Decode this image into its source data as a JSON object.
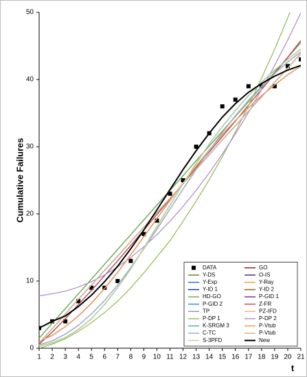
{
  "chart_data": {
    "type": "line",
    "ylabel": "Cumulative Failures",
    "xlabel": "t",
    "xlim": [
      1,
      21
    ],
    "xticks": [
      1,
      2,
      3,
      4,
      5,
      6,
      7,
      8,
      9,
      10,
      11,
      12,
      13,
      14,
      15,
      16,
      17,
      18,
      19,
      20,
      21
    ],
    "ylim": [
      0,
      50
    ],
    "yticks": [
      0,
      10,
      20,
      30,
      40,
      50
    ],
    "grid": false,
    "legend": "lower right",
    "x": [
      1,
      2,
      3,
      4,
      5,
      6,
      7,
      8,
      9,
      10,
      11,
      12,
      13,
      14,
      15,
      16,
      17,
      18,
      19,
      20,
      21
    ],
    "series": [
      {
        "name": "DATA",
        "color": "#000000",
        "marker": "square",
        "values": [
          3,
          4,
          4,
          7,
          9,
          9,
          10,
          13,
          17,
          19,
          23,
          25,
          30,
          32,
          36,
          37,
          39,
          39,
          39,
          42,
          43
        ]
      },
      {
        "name": "GO",
        "color": "#7b2c2c",
        "values": [
          0.8,
          2.9,
          5.1,
          7.3,
          9.4,
          11.6,
          13.7,
          15.9,
          18,
          20.2,
          22.3,
          24.5,
          26.6,
          28.8,
          31,
          33.1,
          35.3,
          37.4,
          39.6,
          41.7,
          43.9
        ]
      },
      {
        "name": "Y-DS",
        "color": "#6b7d23",
        "values": [
          0.3,
          0.8,
          1.6,
          2.8,
          4.4,
          6.5,
          9,
          11.8,
          14.9,
          18.1,
          21.3,
          24.5,
          27.5,
          30.4,
          33,
          35.4,
          37.6,
          39.6,
          41.4,
          43,
          44.5
        ]
      },
      {
        "name": "O-IS",
        "color": "#4b2e83",
        "values": [
          1,
          1.9,
          3.2,
          4.8,
          6.7,
          8.9,
          11.3,
          13.9,
          16.6,
          19.3,
          22,
          24.6,
          27.1,
          29.5,
          31.8,
          33.9,
          35.8,
          37.6,
          39.2,
          40.7,
          42
        ]
      },
      {
        "name": "Y-Exp",
        "color": "#2e75b6",
        "values": [
          1.5,
          3.7,
          5.9,
          8.1,
          10.3,
          12.5,
          14.7,
          16.9,
          19.1,
          21.3,
          23.5,
          25.7,
          27.9,
          30.1,
          32.3,
          34.5,
          36.7,
          38.9,
          41.1,
          43.3,
          45.5
        ]
      },
      {
        "name": "Y-Ray",
        "color": "#e8a13a",
        "values": [
          0.5,
          1.1,
          2.1,
          3.4,
          5.1,
          7.1,
          9.4,
          12,
          14.8,
          17.7,
          20.7,
          23.7,
          26.6,
          29.4,
          32.1,
          34.6,
          36.9,
          39,
          40.9,
          42.6,
          44.1
        ]
      },
      {
        "name": "Y-ID 1",
        "color": "#1f3c88",
        "values": [
          0.3,
          0.8,
          1.6,
          2.8,
          4.4,
          6.5,
          9,
          11.8,
          14.9,
          18.1,
          21.3,
          24.5,
          27.5,
          30.4,
          33,
          35.4,
          37.6,
          39.6,
          41.4,
          43,
          44.5
        ]
      },
      {
        "name": "Y-ID 2",
        "color": "#8b5a2b",
        "values": [
          0.5,
          1.1,
          2.1,
          3.4,
          5.1,
          7.1,
          9.4,
          12,
          14.8,
          17.7,
          20.7,
          23.7,
          26.6,
          29.4,
          32.1,
          34.6,
          36.9,
          39,
          40.9,
          42.6,
          44.1
        ]
      },
      {
        "name": "HD-GO",
        "color": "#70ad47",
        "values": [
          1.5,
          3.7,
          5.9,
          8.1,
          10.3,
          12.5,
          14.7,
          16.9,
          19.1,
          21.3,
          23.5,
          25.7,
          27.9,
          30.1,
          32.3,
          34.5,
          36.7,
          38.9,
          41.1,
          43.3,
          45.5
        ]
      },
      {
        "name": "P-GID 1",
        "color": "#7030a0",
        "values": [
          0.6,
          2.4,
          4.4,
          6.5,
          8.6,
          10.8,
          13,
          15.3,
          17.6,
          19.9,
          22.2,
          24.5,
          26.9,
          29.2,
          31.5,
          33.8,
          36.2,
          38.5,
          40.9,
          43.3,
          45.8
        ]
      },
      {
        "name": "P-GID 2",
        "color": "#1f9bcf",
        "values": [
          0.8,
          2.9,
          5.1,
          7.3,
          9.4,
          11.6,
          13.7,
          15.9,
          18,
          20.2,
          22.3,
          24.5,
          26.6,
          28.8,
          31,
          33.1,
          35.3,
          37.4,
          39.6,
          41.7,
          43.9
        ]
      },
      {
        "name": "Z-FR",
        "color": "#c0504d",
        "values": [
          0.6,
          2.4,
          4.4,
          6.5,
          8.6,
          10.8,
          13,
          15.3,
          17.6,
          19.9,
          22.2,
          24.5,
          26.9,
          29.2,
          31.5,
          33.8,
          36.2,
          38.5,
          40.9,
          43.3,
          45.8
        ]
      },
      {
        "name": "TP",
        "color": "#8096d0",
        "values": [
          1,
          1.9,
          3.2,
          4.8,
          6.7,
          8.9,
          11.3,
          13.9,
          16.6,
          19.3,
          22,
          24.6,
          27.1,
          29.5,
          31.8,
          33.9,
          35.8,
          37.6,
          39.2,
          40.7,
          42
        ]
      },
      {
        "name": "PZ-IFD",
        "color": "#f4b183",
        "values": [
          0.5,
          1.1,
          2.1,
          3.4,
          5.1,
          7.1,
          9.4,
          12,
          14.8,
          17.7,
          20.7,
          23.7,
          26.6,
          29.4,
          32.1,
          34.6,
          36.9,
          39,
          40.9,
          42.6,
          44.1
        ]
      },
      {
        "name": "P-DP 1",
        "color": "#9bbb59",
        "values": [
          0,
          0.6,
          1.4,
          2.5,
          3.8,
          5.3,
          7,
          9,
          11.2,
          13.6,
          16,
          18.9,
          21.9,
          25.1,
          28.5,
          32.2,
          36.1,
          40.2,
          44.5,
          49.2,
          54
        ]
      },
      {
        "name": "P-DP 2",
        "color": "#b28fce",
        "values": [
          7.8,
          8.1,
          8.5,
          9.1,
          9.9,
          10.9,
          12.1,
          13.5,
          15.1,
          16.9,
          18.9,
          21.1,
          23.5,
          26.1,
          28.9,
          31.9,
          35.1,
          38.5,
          42.1,
          45.9,
          49.9
        ]
      },
      {
        "name": "K-SRGM 3",
        "color": "#4bacc6",
        "values": [
          0.3,
          0.8,
          1.6,
          2.8,
          4.4,
          6.5,
          9,
          11.8,
          14.9,
          18.1,
          21.3,
          24.5,
          27.5,
          30.4,
          33,
          35.4,
          37.6,
          39.6,
          41.4,
          43,
          44.5
        ]
      },
      {
        "name": "P-Vtub",
        "color": "#f79646",
        "values": [
          1,
          1.9,
          3.2,
          4.8,
          6.7,
          8.9,
          11.3,
          13.9,
          16.6,
          19.3,
          22,
          24.6,
          27.1,
          29.5,
          31.8,
          33.9,
          35.8,
          37.6,
          39.2,
          40.7,
          42
        ]
      },
      {
        "name": "C-TC",
        "color": "#95b3d7",
        "values": [
          0.5,
          1.1,
          2.1,
          3.4,
          5.1,
          7.1,
          9.4,
          12,
          14.8,
          17.7,
          20.7,
          23.7,
          26.6,
          29.4,
          32.1,
          34.6,
          36.9,
          39,
          40.9,
          42.6,
          44.1
        ]
      },
      {
        "name": "P-Vtub",
        "color": "#d9b38c",
        "values": [
          0.8,
          2.9,
          5.1,
          7.3,
          9.4,
          11.6,
          13.7,
          15.9,
          18,
          20.2,
          22.3,
          24.5,
          26.6,
          28.8,
          31,
          33.1,
          35.3,
          37.4,
          39.6,
          41.7,
          43.9
        ]
      },
      {
        "name": "S-3PFD",
        "color": "#c3d69b",
        "values": [
          0.3,
          0.8,
          1.6,
          2.8,
          4.4,
          6.5,
          9,
          11.8,
          14.9,
          18.1,
          21.3,
          24.5,
          27.5,
          30.4,
          33,
          35.4,
          37.6,
          39.6,
          41.4,
          43,
          44.5
        ]
      },
      {
        "name": "New",
        "color": "#000000",
        "width": 2,
        "values": [
          3,
          4,
          4.8,
          6.2,
          7.9,
          9.9,
          12.2,
          14.8,
          17.6,
          20.6,
          23.6,
          26.6,
          29.4,
          32,
          34.4,
          36.4,
          38.1,
          39.4,
          40.5,
          41.4,
          42.1
        ]
      }
    ]
  }
}
